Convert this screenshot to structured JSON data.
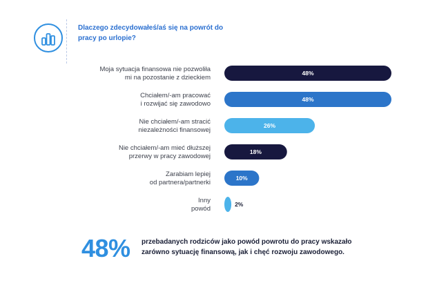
{
  "header": {
    "question": "Dlaczego zdecydowałeś/aś się na powrót do pracy po urlopie?",
    "icon": "bar-chart-icon",
    "accent_color": "#2a6fd0"
  },
  "chart_data": {
    "type": "bar",
    "orientation": "horizontal",
    "title": "",
    "xlabel": "",
    "ylabel": "",
    "categories": [
      [
        "Moja sytuacja finansowa nie pozwoliła",
        "mi na pozostanie z dzieckiem"
      ],
      [
        "Chciałem/-am pracować",
        "i rozwijać się zawodowo"
      ],
      [
        "Nie chciałem/-am stracić",
        "niezależności finansowej"
      ],
      [
        "Nie chciałem/-am mieć dłuższej",
        "przerwy w pracy zawodowej"
      ],
      [
        "Zarabiam lepiej",
        "od partnera/partnerki"
      ],
      [
        "Inny",
        "powód"
      ]
    ],
    "values": [
      48,
      48,
      26,
      18,
      10,
      2
    ],
    "value_labels": [
      "48%",
      "48%",
      "26%",
      "18%",
      "10%",
      "2%"
    ],
    "bar_colors": [
      "#17183f",
      "#2c75c9",
      "#4cb3ea",
      "#17183f",
      "#2c75c9",
      "#4cb3ea"
    ],
    "xlim": [
      0,
      48
    ],
    "grid": false,
    "legend": "none"
  },
  "footer": {
    "highlight": "48%",
    "highlight_color": "#2f8fe0",
    "text_line1": "przebadanych rodziców jako powód powrotu do pracy wskazało",
    "text_line2": "zarówno sytuację finansową, jak i chęć rozwoju zawodowego."
  }
}
